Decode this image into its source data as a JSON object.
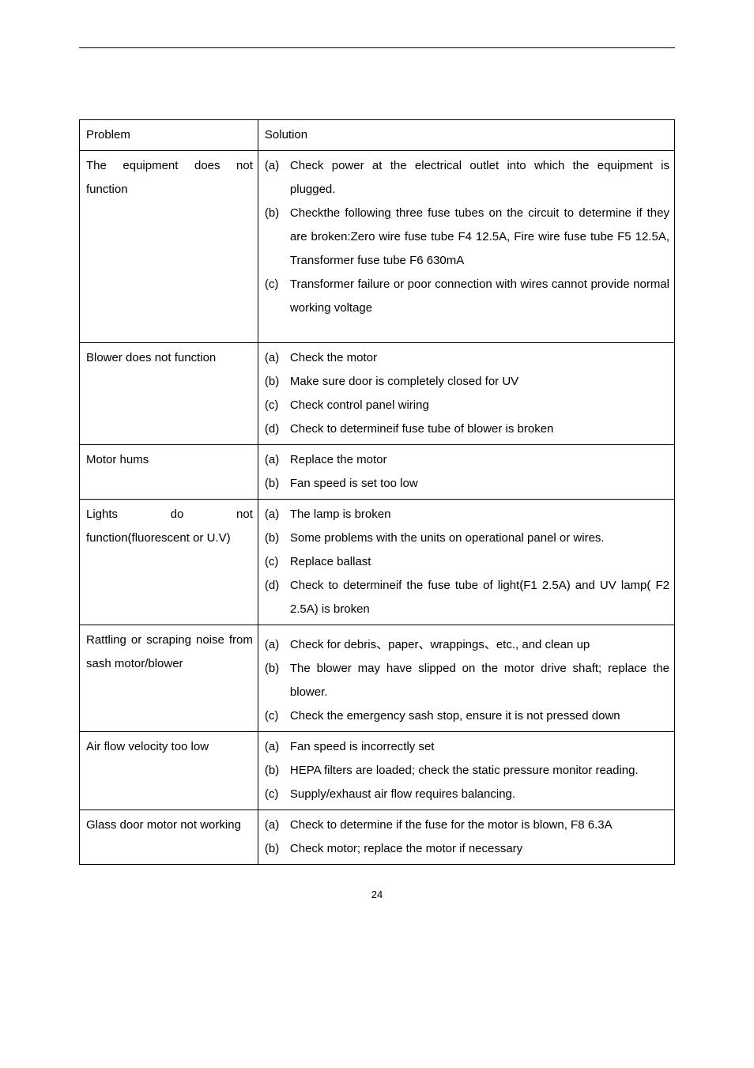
{
  "header": {
    "col_problem": "Problem",
    "col_solution": "Solution"
  },
  "rows": [
    {
      "problem": "The equipment does not function",
      "items": [
        {
          "marker": "(a)",
          "text": "Check power at the electrical outlet into which the equipment is plugged."
        },
        {
          "marker": "(b)",
          "text": "Checkthe following three fuse tubes on the circuit to determine if they are broken:Zero wire fuse tube F4 12.5A, Fire wire fuse tube F5 12.5A, Transformer fuse tube F6 630mA"
        },
        {
          "marker": "(c)",
          "text": "Transformer failure or poor connection with wires cannot provide normal working voltage"
        }
      ],
      "trailing_blank": true
    },
    {
      "problem": "Blower does not function",
      "items": [
        {
          "marker": "(a)",
          "text": "Check the motor"
        },
        {
          "marker": "(b)",
          "text": "Make sure door is completely closed for UV"
        },
        {
          "marker": "(c)",
          "text": "Check control panel wiring"
        },
        {
          "marker": "(d)",
          "text": "Check to determineif fuse tube of blower is broken"
        }
      ]
    },
    {
      "problem": "Motor hums",
      "items": [
        {
          "marker": "(a)",
          "text": "Replace the motor"
        },
        {
          "marker": "(b)",
          "text": "Fan speed is set too low"
        }
      ]
    },
    {
      "problem": "Lights do not function(fluorescent or U.V)",
      "items": [
        {
          "marker": "(a)",
          "text": "The lamp is broken"
        },
        {
          "marker": "(b)",
          "text": "Some problems with the units on operational panel or wires."
        },
        {
          "marker": "(c)",
          "text": "Replace ballast"
        },
        {
          "marker": "(d)",
          "text": "Check to determineif the fuse tube of light(F1 2.5A) and UV lamp( F2 2.5A) is broken"
        }
      ]
    },
    {
      "problem": "Rattling or scraping noise from sash motor/blower",
      "items": [
        {
          "marker": "(a)",
          "text": "Check for debris、paper、wrappings、etc., and clean up"
        },
        {
          "marker": "(b)",
          "text": "The blower may have slipped on the motor drive shaft; replace the blower."
        },
        {
          "marker": "(c)",
          "text": "Check the emergency sash stop, ensure it is not pressed down"
        }
      ],
      "leading_blank": true
    },
    {
      "problem": "Air flow velocity too low",
      "items": [
        {
          "marker": "(a)",
          "text": "Fan speed is incorrectly set"
        },
        {
          "marker": "(b)",
          "text": "HEPA filters are loaded; check the static pressure monitor reading."
        },
        {
          "marker": "(c)",
          "text": "Supply/exhaust air flow requires balancing."
        }
      ]
    },
    {
      "problem": "Glass door motor not working",
      "items": [
        {
          "marker": "(a)",
          "text": "Check to determine if the fuse for the motor is blown, F8 6.3A"
        },
        {
          "marker": "(b)",
          "text": "Check motor; replace the motor if necessary"
        }
      ]
    }
  ],
  "page_number": "24"
}
